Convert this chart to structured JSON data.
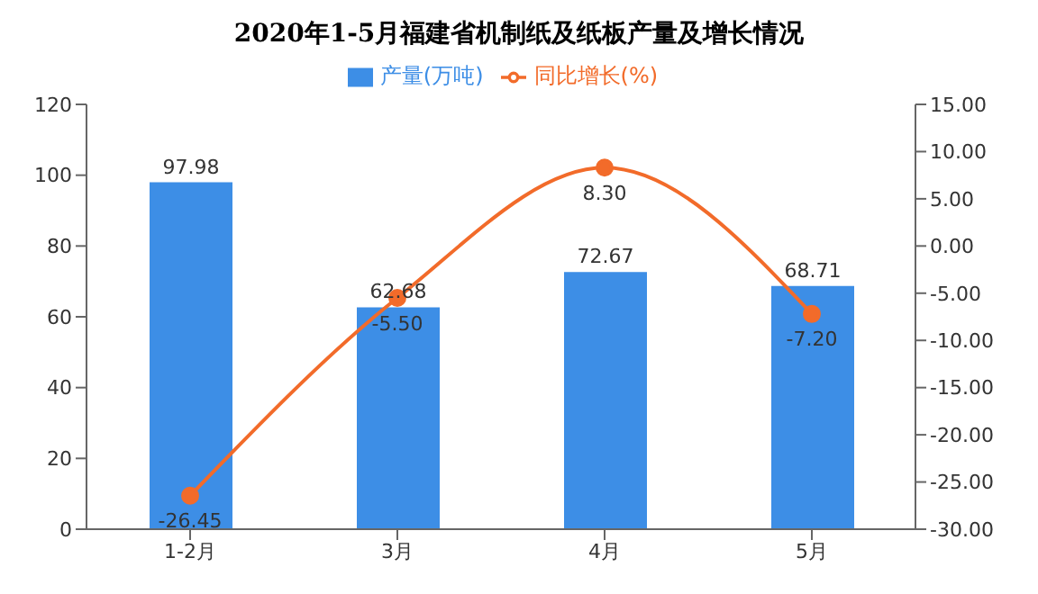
{
  "chart_data": {
    "type": "bar",
    "title": "2020年1-5月福建省机制纸及纸板产量及增长情况",
    "categories": [
      "1-2月",
      "3月",
      "4月",
      "5月"
    ],
    "series": [
      {
        "name": "产量(万吨)",
        "color": "#3d8ee6",
        "values": [
          97.98,
          62.68,
          72.67,
          68.71
        ],
        "value_labels": [
          "97.98",
          "62.68",
          "72.67",
          "68.71"
        ]
      },
      {
        "name": "同比增长(%)",
        "type": "line",
        "axis": "y2",
        "color": "#f26b2a",
        "values": [
          -26.45,
          -5.5,
          8.3,
          -7.2
        ],
        "value_labels": [
          "-26.45",
          "-5.50",
          "8.30",
          "-7.20"
        ]
      }
    ],
    "ylim": [
      0,
      120
    ],
    "yticks": [
      0,
      20,
      40,
      60,
      80,
      100,
      120
    ],
    "y2lim": [
      -30,
      15
    ],
    "y2ticks": [
      {
        "value": 15,
        "label": "15.00"
      },
      {
        "value": 10,
        "label": "10.00"
      },
      {
        "value": 5,
        "label": "5.00"
      },
      {
        "value": 0,
        "label": "0.00"
      },
      {
        "value": -5,
        "label": "-5.00"
      },
      {
        "value": -10,
        "label": "-10.00"
      },
      {
        "value": -15,
        "label": "-15.00"
      },
      {
        "value": -20,
        "label": "-20.00"
      },
      {
        "value": -25,
        "label": "-25.00"
      },
      {
        "value": -30,
        "label": "-30.00"
      }
    ],
    "legend": "top",
    "marker": "circle",
    "grid": false
  }
}
